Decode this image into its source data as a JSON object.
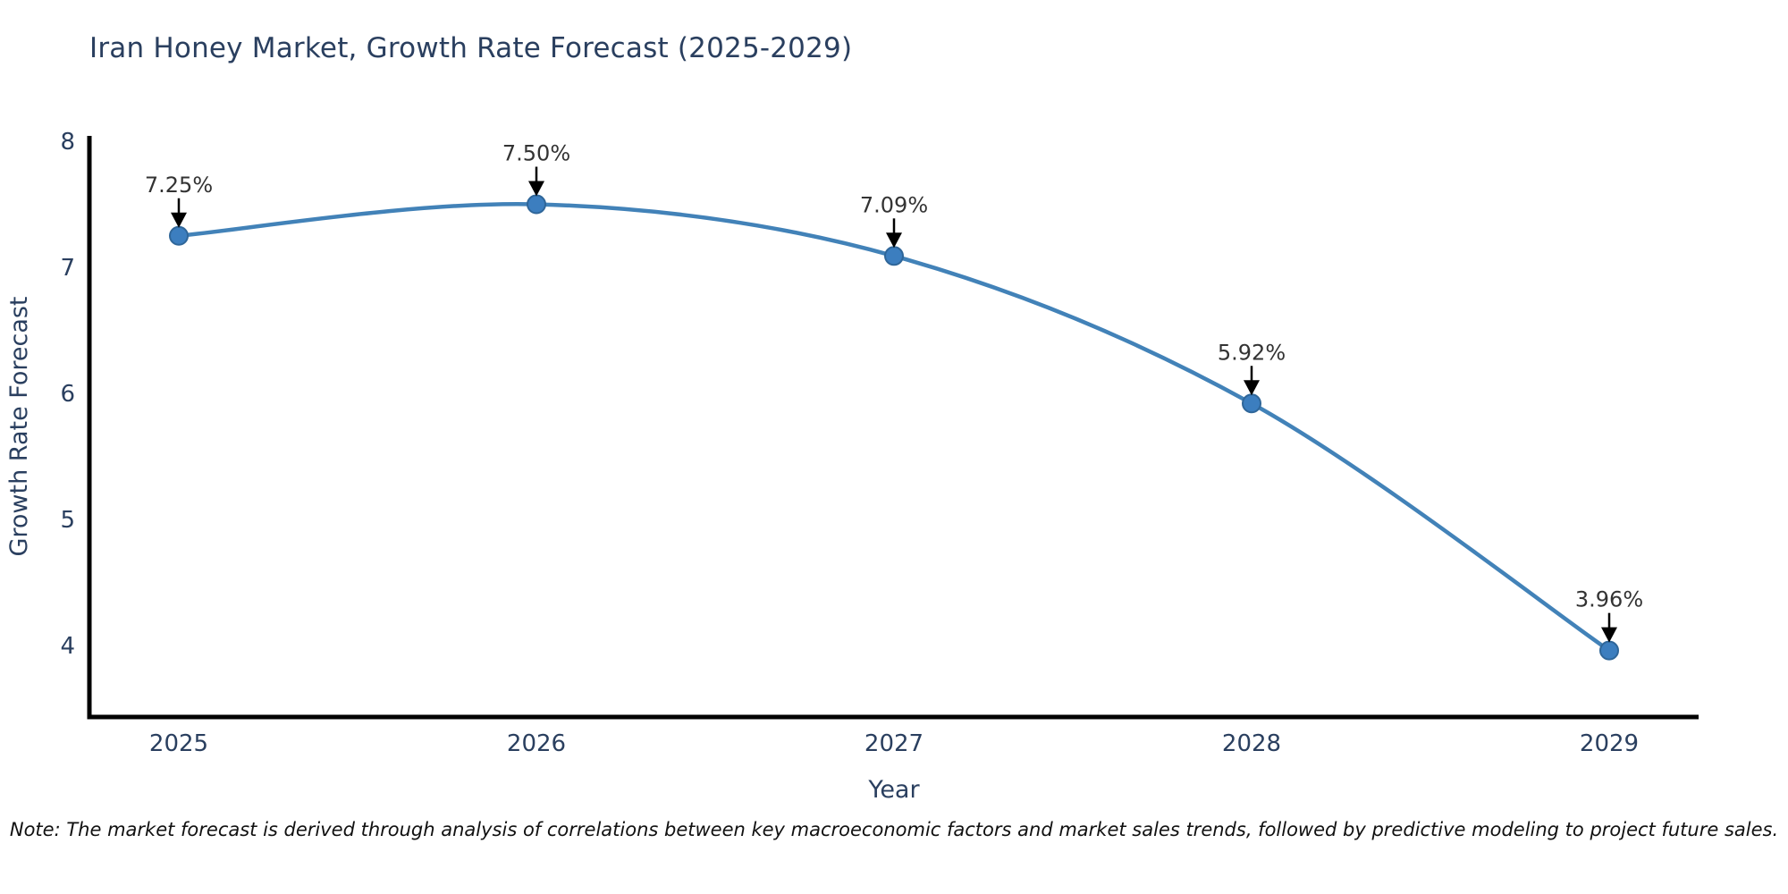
{
  "title": "Iran Honey Market, Growth Rate Forecast (2025-2029)",
  "note": "Note: The market forecast is derived through analysis of correlations between key macroeconomic factors and market sales trends, followed by predictive modeling to project future sales.",
  "chart_data": {
    "type": "line",
    "title": "Iran Honey Market, Growth Rate Forecast (2025-2029)",
    "categories": [
      "2025",
      "2026",
      "2027",
      "2028",
      "2029"
    ],
    "values": [
      7.25,
      7.5,
      7.09,
      5.92,
      3.96
    ],
    "point_labels": [
      "7.25%",
      "7.50%",
      "7.09%",
      "5.92%",
      "3.96%"
    ],
    "xlabel": "Year",
    "ylabel": "Growth Rate Forecast",
    "yticks": [
      8,
      7,
      6,
      5,
      4
    ],
    "ylim": [
      3.45,
      8.05
    ],
    "grid": false,
    "legend": false,
    "line_shape": "spline",
    "annotation_style": "arrow-down-to-point",
    "colors": {
      "line": "#4282b8",
      "marker": "#3c7ebf",
      "marker_edge": "#2f6699",
      "axis": "#000000",
      "text": "#2a3f5f",
      "annotation": "#333333",
      "note": "#111111",
      "background": "#ffffff"
    }
  }
}
